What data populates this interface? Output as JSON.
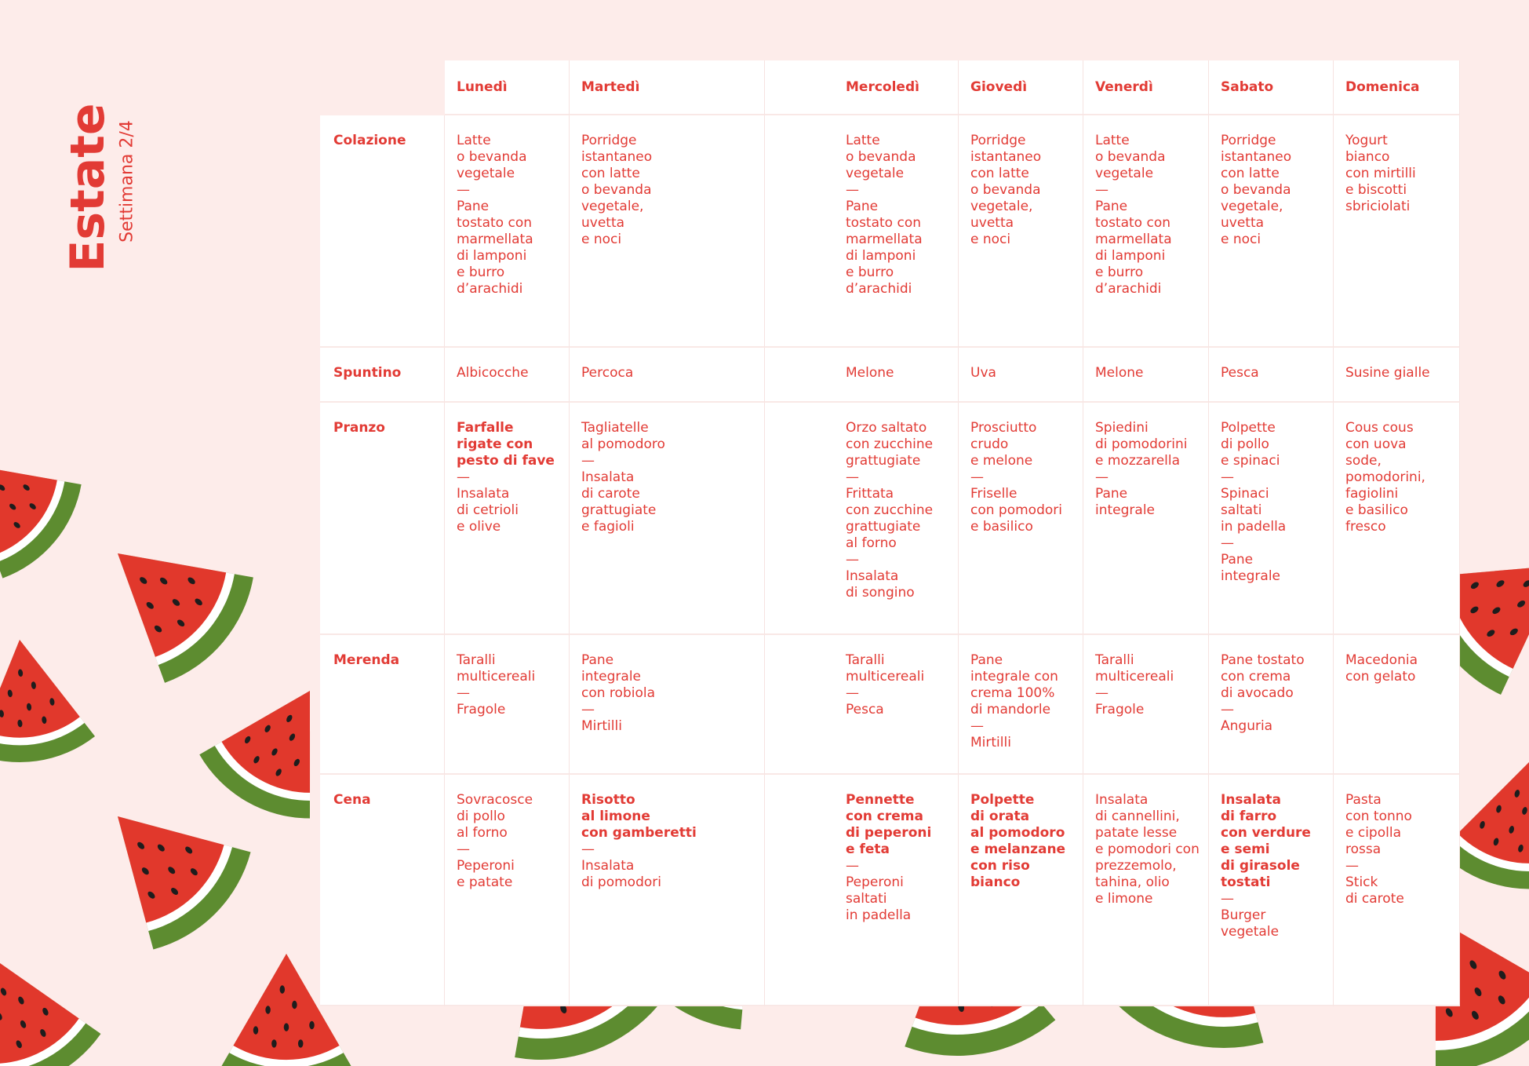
{
  "header": {
    "title": "Estate",
    "subtitle": "Settimana 2/4"
  },
  "table": {
    "columns": [
      "Lunedì",
      "Martedì",
      "Mercoledì",
      "Giovedì",
      "Venerdì",
      "Sabato",
      "Domenica"
    ],
    "rows": [
      {
        "label": "Colazione",
        "cells": [
          {
            "text": [
              "Latte",
              "o bevanda",
              "vegetale",
              "—",
              "Pane",
              "tostato con",
              "marmellata",
              "di lamponi",
              "e burro",
              "d’arachidi"
            ]
          },
          {
            "text": [
              "Porridge",
              "istantaneo",
              "con latte",
              "o bevanda",
              "vegetale,",
              "uvetta",
              "e noci"
            ]
          },
          {
            "text": [
              "Latte",
              "o bevanda",
              "vegetale",
              "—",
              "Pane",
              "tostato con",
              "marmellata",
              "di lamponi",
              "e burro",
              "d’arachidi"
            ]
          },
          {
            "text": [
              "Porridge",
              "istantaneo",
              "con latte",
              "o bevanda",
              "vegetale,",
              "uvetta",
              "e noci"
            ]
          },
          {
            "text": [
              "Latte",
              "o bevanda",
              "vegetale",
              "—",
              "Pane",
              "tostato con",
              "marmellata",
              "di lamponi",
              "e burro",
              "d’arachidi"
            ]
          },
          {
            "text": [
              "Porridge",
              "istantaneo",
              "con latte",
              "o bevanda",
              "vegetale,",
              "uvetta",
              "e noci"
            ]
          },
          {
            "text": [
              "Yogurt",
              "bianco",
              "con mirtilli",
              "e biscotti",
              "sbriciolati"
            ]
          }
        ]
      },
      {
        "label": "Spuntino",
        "cells": [
          {
            "text": [
              "Albicocche"
            ]
          },
          {
            "text": [
              "Percoca"
            ]
          },
          {
            "text": [
              "Melone"
            ]
          },
          {
            "text": [
              "Uva"
            ]
          },
          {
            "text": [
              "Melone"
            ]
          },
          {
            "text": [
              "Pesca"
            ]
          },
          {
            "text": [
              "Susine gialle"
            ]
          }
        ]
      },
      {
        "label": "Pranzo",
        "cells": [
          {
            "bold": [
              "Farfalle",
              "rigate con",
              "pesto di fave"
            ],
            "text": [
              "—",
              "Insalata",
              "di cetrioli",
              "e olive"
            ]
          },
          {
            "text": [
              "Tagliatelle",
              "al pomodoro",
              "—",
              "Insalata",
              "di carote",
              "grattugiate",
              "e fagioli"
            ]
          },
          {
            "text": [
              "Orzo saltato",
              "con zucchine",
              "grattugiate",
              "—",
              "Frittata",
              "con zucchine",
              "grattugiate",
              "al forno",
              "—",
              "Insalata",
              "di songino"
            ]
          },
          {
            "text": [
              "Prosciutto",
              "crudo",
              "e melone",
              "—",
              "Friselle",
              "con pomodori",
              "e basilico"
            ]
          },
          {
            "text": [
              "Spiedini",
              "di pomodorini",
              "e mozzarella",
              "—",
              "Pane",
              "integrale"
            ]
          },
          {
            "text": [
              "Polpette",
              "di pollo",
              "e spinaci",
              "—",
              "Spinaci",
              "saltati",
              "in padella",
              "—",
              "Pane",
              "integrale"
            ]
          },
          {
            "text": [
              "Cous cous",
              "con uova",
              "sode,",
              "pomodorini,",
              "fagiolini",
              "e basilico",
              "fresco"
            ]
          }
        ]
      },
      {
        "label": "Merenda",
        "cells": [
          {
            "text": [
              "Taralli",
              "multicereali",
              "—",
              "Fragole"
            ]
          },
          {
            "text": [
              "Pane",
              "integrale",
              "con robiola",
              "—",
              "Mirtilli"
            ]
          },
          {
            "text": [
              "Taralli",
              "multicereali",
              "—",
              "Pesca"
            ]
          },
          {
            "text": [
              "Pane",
              "integrale con",
              "crema 100%",
              "di mandorle",
              "—",
              "Mirtilli"
            ]
          },
          {
            "text": [
              "Taralli",
              "multicereali",
              "—",
              "Fragole"
            ]
          },
          {
            "text": [
              "Pane tostato",
              "con crema",
              "di avocado",
              "—",
              "Anguria"
            ]
          },
          {
            "text": [
              "Macedonia",
              "con gelato"
            ]
          }
        ]
      },
      {
        "label": "Cena",
        "cells": [
          {
            "text": [
              "Sovracosce",
              "di pollo",
              "al forno",
              "—",
              "Peperoni",
              "e patate"
            ]
          },
          {
            "bold": [
              "Risotto",
              "al limone",
              "con gamberetti"
            ],
            "text": [
              "—",
              "Insalata",
              "di pomodori"
            ]
          },
          {
            "bold": [
              "Pennette",
              "con crema",
              "di peperoni",
              "e feta"
            ],
            "text": [
              "—",
              "Peperoni",
              "saltati",
              "in padella"
            ]
          },
          {
            "bold": [
              "Polpette",
              "di orata",
              "al pomodoro",
              "e melanzane",
              "con riso",
              "bianco"
            ]
          },
          {
            "text": [
              "Insalata",
              "di cannellini,",
              "patate lesse",
              "e pomodori con",
              "prezzemolo,",
              "tahina, olio",
              "e limone"
            ]
          },
          {
            "bold": [
              "Insalata",
              "di farro",
              "con verdure",
              "e semi",
              "di girasole",
              "tostati"
            ],
            "text": [
              "—",
              "Burger",
              "vegetale"
            ]
          },
          {
            "text": [
              "Pasta",
              "con tonno",
              "e cipolla",
              "rossa",
              "—",
              "Stick",
              "di carote"
            ]
          }
        ]
      }
    ]
  }
}
